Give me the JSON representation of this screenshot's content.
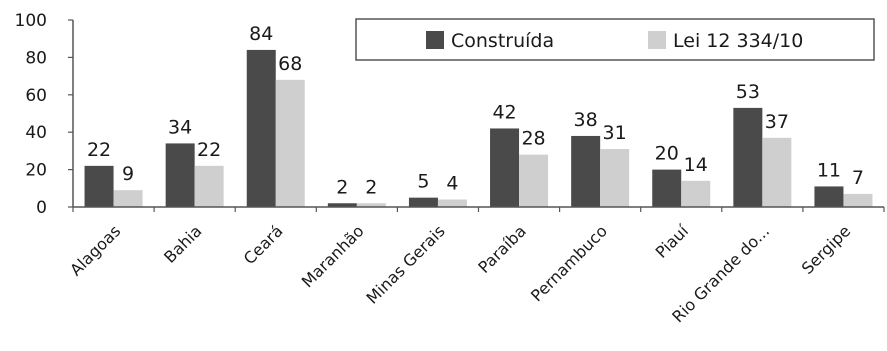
{
  "chart_data": {
    "type": "bar",
    "title": "",
    "xlabel": "",
    "ylabel": "",
    "ylim": [
      0,
      100
    ],
    "yticks": [
      0,
      20,
      40,
      60,
      80,
      100
    ],
    "grid": false,
    "legend_position": "top-right",
    "categories": [
      "Alagoas",
      "Bahia",
      "Ceará",
      "Maranhão",
      "Minas Gerais",
      "Paraíba",
      "Pernambuco",
      "Piauí",
      "Rio Grande do...",
      "Sergipe"
    ],
    "series": [
      {
        "name": "Construída",
        "color": "#4a4a4a",
        "values": [
          22,
          34,
          84,
          2,
          5,
          42,
          38,
          20,
          53,
          11
        ]
      },
      {
        "name": "Lei 12 334/10",
        "color": "#cfcfcf",
        "values": [
          9,
          22,
          68,
          2,
          4,
          28,
          31,
          14,
          37,
          7
        ]
      }
    ]
  }
}
